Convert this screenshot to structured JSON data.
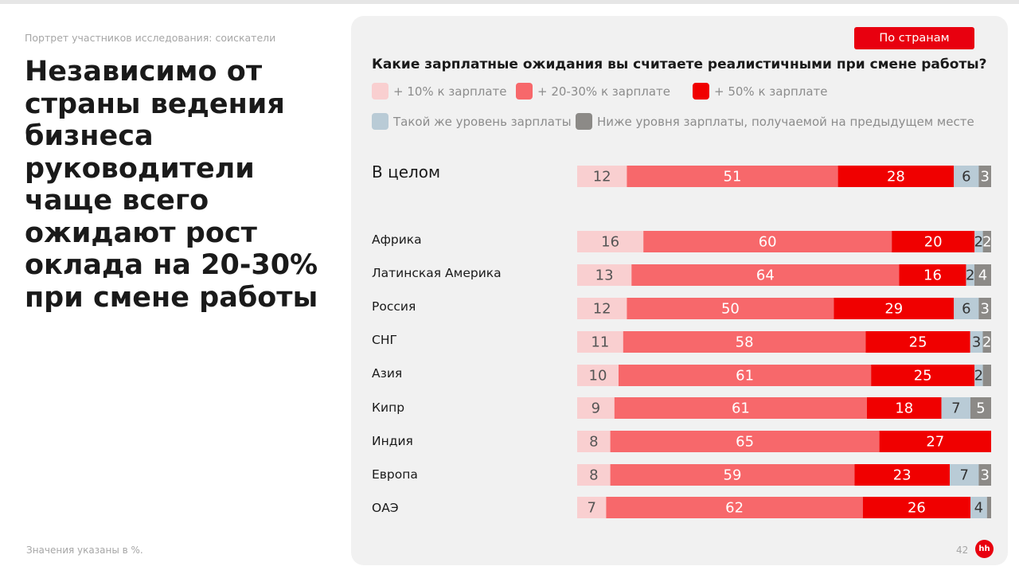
{
  "section_label": "Портрет участников исследования: соискатели",
  "headline": "Независимо от страны ведения бизнеса руководители чаще всего ожидают рост оклада на 20-30% при смене работы",
  "footnote": "Значения указаны в %.",
  "page_number": "42",
  "logo_text": "hh",
  "country_button_label": "По странам",
  "chart_data": {
    "type": "bar",
    "orientation": "horizontal",
    "stacked": true,
    "title": "Какие зарплатные ожидания вы считаете реалистичными при смене работы?",
    "categories": [
      "В целом",
      "Африка",
      "Латинская Америка",
      "Россия",
      "СНГ",
      "Азия",
      "Кипр",
      "Индия",
      "Европа",
      "ОАЭ"
    ],
    "series": [
      {
        "name": "+ 10% к зарплате",
        "color": "#f9cfd0",
        "text_color": "#555555",
        "values": [
          12,
          16,
          13,
          12,
          11,
          10,
          9,
          8,
          8,
          7
        ]
      },
      {
        "name": "+ 20-30% к зарплате",
        "color": "#f7686b",
        "text_color": "#ffffff",
        "values": [
          51,
          60,
          64,
          50,
          58,
          61,
          61,
          65,
          59,
          62
        ]
      },
      {
        "name": "+ 50% к зарплате",
        "color": "#f00000",
        "text_color": "#ffffff",
        "values": [
          28,
          20,
          16,
          29,
          25,
          25,
          18,
          27,
          23,
          26
        ]
      },
      {
        "name": "Такой же уровень зарплаты",
        "color": "#b9cbd6",
        "text_color": "#333333",
        "values": [
          6,
          2,
          2,
          6,
          3,
          2,
          7,
          0,
          7,
          4
        ]
      },
      {
        "name": "Ниже уровня зарплаты, получаемой на предыдущем месте",
        "color": "#8c8a87",
        "text_color": "#ffffff",
        "values": [
          3,
          2,
          4,
          3,
          2,
          2,
          5,
          0,
          3,
          1
        ]
      }
    ],
    "data_labels": [
      [
        "12",
        "51",
        "28",
        "6",
        "3"
      ],
      [
        "16",
        "60",
        "20",
        "2",
        "2"
      ],
      [
        "13",
        "64",
        "16",
        "2",
        "4"
      ],
      [
        "12",
        "50",
        "29",
        "6",
        "3"
      ],
      [
        "11",
        "58",
        "25",
        "3",
        "2"
      ],
      [
        "10",
        "61",
        "25",
        "2",
        ""
      ],
      [
        "9",
        "61",
        "18",
        "7",
        "5"
      ],
      [
        "8",
        "65",
        "27",
        "",
        ""
      ],
      [
        "8",
        "59",
        "23",
        "7",
        "3"
      ],
      [
        "7",
        "62",
        "26",
        "4",
        ""
      ]
    ],
    "xlim": [
      0,
      100
    ],
    "legend": "top",
    "grid": false
  }
}
